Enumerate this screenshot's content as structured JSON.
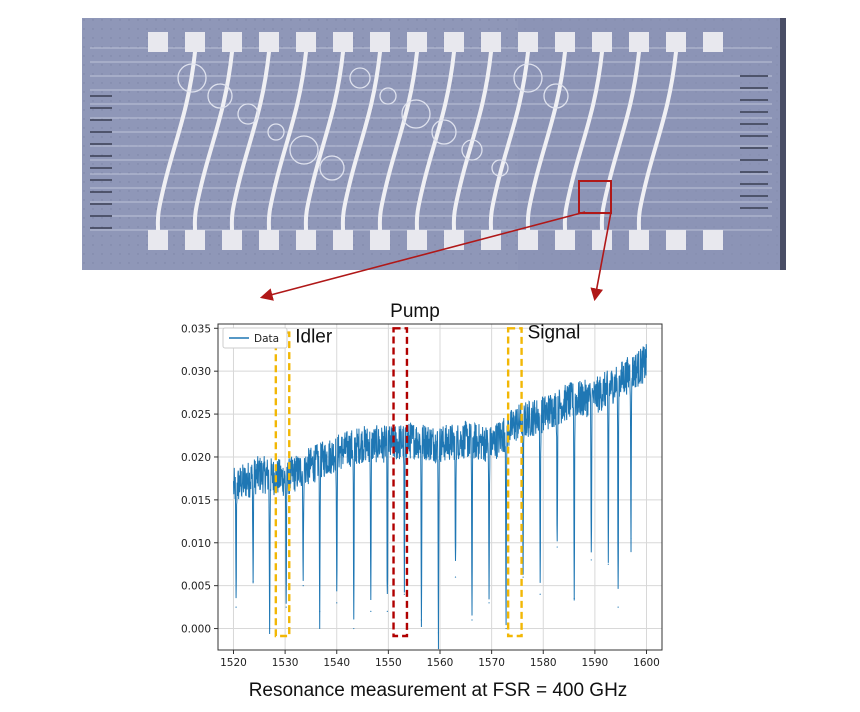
{
  "figure": {
    "caption": "Resonance measurement at FSR = 400 GHz",
    "colors": {
      "chip_bg": "#8f97b8",
      "pad": "#e8e8ee",
      "wire": "#f0f0f4",
      "highlight_box": "#b01818",
      "pointer": "#b01818"
    },
    "micrograph_icon": "photonic-chip-micrograph"
  },
  "chart_data": {
    "type": "line",
    "title": "Pump",
    "xlabel": "",
    "ylabel": "",
    "xlim": [
      1517,
      1603
    ],
    "ylim": [
      -0.0025,
      0.0355
    ],
    "xticks": [
      1520,
      1530,
      1540,
      1550,
      1560,
      1570,
      1580,
      1590,
      1600
    ],
    "yticks": [
      0.0,
      0.005,
      0.01,
      0.015,
      0.02,
      0.025,
      0.03,
      0.035
    ],
    "ytick_labels": [
      "0.000",
      "0.005",
      "0.010",
      "0.015",
      "0.020",
      "0.025",
      "0.030",
      "0.035"
    ],
    "grid": true,
    "legend": {
      "position": "top-left",
      "entries": [
        "Data"
      ]
    },
    "series": [
      {
        "name": "Data",
        "color": "#1f77b4",
        "baseline": {
          "x": [
            1520,
            1525,
            1530,
            1535,
            1540,
            1545,
            1550,
            1555,
            1560,
            1565,
            1570,
            1575,
            1580,
            1585,
            1590,
            1595,
            1600
          ],
          "y": [
            0.0165,
            0.018,
            0.0175,
            0.019,
            0.0205,
            0.0215,
            0.0215,
            0.022,
            0.0215,
            0.022,
            0.0215,
            0.024,
            0.025,
            0.0265,
            0.027,
            0.029,
            0.031
          ]
        },
        "noise_amplitude": 0.0022,
        "resonance_dips": [
          {
            "x": 1520.5,
            "y": 0.0025
          },
          {
            "x": 1523.8,
            "y": 0.0055
          },
          {
            "x": 1527.0,
            "y": 0.0
          },
          {
            "x": 1530.2,
            "y": 0.0025
          },
          {
            "x": 1533.5,
            "y": 0.005
          },
          {
            "x": 1536.7,
            "y": 0.002
          },
          {
            "x": 1540.0,
            "y": 0.003
          },
          {
            "x": 1543.3,
            "y": 0.0
          },
          {
            "x": 1546.6,
            "y": 0.002
          },
          {
            "x": 1549.8,
            "y": 0.002
          },
          {
            "x": 1553.1,
            "y": 0.004
          },
          {
            "x": 1556.4,
            "y": 0.001
          },
          {
            "x": 1559.7,
            "y": -0.0005
          },
          {
            "x": 1563.0,
            "y": 0.006
          },
          {
            "x": 1566.2,
            "y": 0.001
          },
          {
            "x": 1569.5,
            "y": 0.003
          },
          {
            "x": 1572.8,
            "y": 0.0
          },
          {
            "x": 1576.1,
            "y": 0.006
          },
          {
            "x": 1579.4,
            "y": 0.004
          },
          {
            "x": 1582.7,
            "y": 0.0095
          },
          {
            "x": 1586.0,
            "y": 0.0035
          },
          {
            "x": 1589.3,
            "y": 0.008
          },
          {
            "x": 1592.6,
            "y": 0.0075
          },
          {
            "x": 1594.5,
            "y": 0.0025
          },
          {
            "x": 1597.0,
            "y": 0.0105
          }
        ]
      }
    ],
    "annotations": [
      {
        "label": "Idler",
        "x_range": [
          1528.2,
          1530.8
        ],
        "y_top": 0.0345,
        "color": "#f2b705",
        "style": "dashed-box"
      },
      {
        "label": "",
        "x_range": [
          1551.0,
          1553.6
        ],
        "y_top": 0.035,
        "color": "#b00000",
        "style": "dashed-box"
      },
      {
        "label": "Signal",
        "x_range": [
          1573.2,
          1575.8
        ],
        "y_top": 0.035,
        "color": "#f2b705",
        "style": "dashed-box"
      }
    ]
  }
}
